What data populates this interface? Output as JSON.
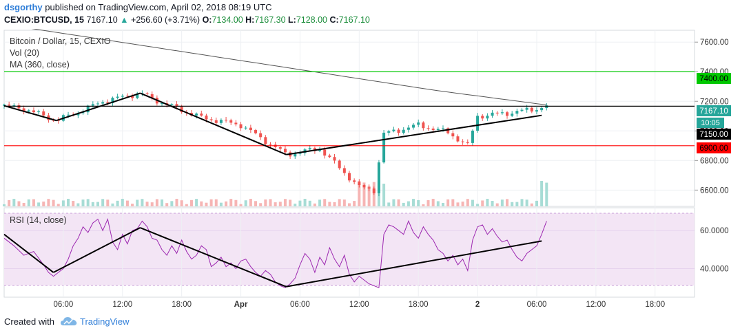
{
  "header": {
    "user": "dsgorthy",
    "published": " published on TradingView.com, April 02, 2018 08:19 UTC",
    "symbol": "CEXIO:BTCUSD, 15",
    "last": "7167.10",
    "arrow": "▲",
    "change": "+256.60 (+3.71%)",
    "o_label": "O:",
    "o_value": "7134.00",
    "h_label": "H:",
    "h_value": "7167.30",
    "l_label": "L:",
    "l_value": "7128.00",
    "c_label": "C:",
    "c_value": "7167.10"
  },
  "legend": {
    "title": "Bitcoin / Dollar, 15, CEXIO",
    "volume": "Vol (20)",
    "ma": "MA (360, close)",
    "rsi": "RSI (14, close)"
  },
  "price_tags": {
    "last": "7167.10",
    "countdown": "10:05",
    "support_line": "7150.00",
    "resistance": "7400.00",
    "support": "6900.00"
  },
  "footer": {
    "created": "Created with",
    "brand": "TradingView"
  },
  "colors": {
    "up": "#26a69a",
    "down": "#ef5350",
    "ma": "#555555",
    "resistance": "#00c800",
    "support": "#ff0000",
    "rsi_line": "#9c27b0",
    "rsi_band": "#f3e5f5",
    "trend": "#000000"
  },
  "chart_data": {
    "type": "candlestick",
    "title": "Bitcoin / Dollar, 15, CEXIO",
    "price_axis": {
      "ticks": [
        6600,
        6800,
        7000,
        7200,
        7400,
        7600
      ],
      "range": [
        6490,
        7680
      ]
    },
    "time_axis": {
      "ticks": [
        "06:00",
        "12:00",
        "18:00",
        "Apr",
        "06:00",
        "12:00",
        "18:00",
        "2",
        "06:00",
        "12:00",
        "18:00"
      ],
      "tick_hours": [
        6,
        12,
        18,
        24,
        30,
        36,
        42,
        48,
        54,
        60,
        66
      ],
      "range_hours": [
        0,
        70
      ]
    },
    "horizontal_levels": [
      {
        "price": 7400.0,
        "role": "resistance"
      },
      {
        "price": 6900.0,
        "role": "support"
      },
      {
        "price": 7167.1,
        "role": "last price"
      }
    ],
    "trendlines_price": [
      {
        "points": [
          [
            0,
            7170
          ],
          [
            5.3,
            7070
          ]
        ]
      },
      {
        "points": [
          [
            5.3,
            7070
          ],
          [
            13.8,
            7255
          ]
        ]
      },
      {
        "points": [
          [
            13.8,
            7255
          ],
          [
            28.6,
            6840
          ]
        ]
      },
      {
        "points": [
          [
            28.6,
            6840
          ],
          [
            54.5,
            7105
          ]
        ]
      }
    ],
    "rsi": {
      "range": [
        25,
        72
      ],
      "ticks": [
        40,
        60
      ],
      "band": [
        30,
        70
      ],
      "points": [
        [
          0,
          56
        ],
        [
          1,
          52
        ],
        [
          2,
          47
        ],
        [
          3,
          49
        ],
        [
          4,
          42
        ],
        [
          4.5,
          38
        ],
        [
          5,
          36
        ],
        [
          5.5,
          38
        ],
        [
          6,
          40
        ],
        [
          6.5,
          45
        ],
        [
          7,
          52
        ],
        [
          7.5,
          56
        ],
        [
          8,
          62
        ],
        [
          8.5,
          59
        ],
        [
          9,
          64
        ],
        [
          9.5,
          66
        ],
        [
          10,
          60
        ],
        [
          10.5,
          66
        ],
        [
          11,
          54
        ],
        [
          11.5,
          50
        ],
        [
          12,
          58
        ],
        [
          12.5,
          53
        ],
        [
          13,
          60
        ],
        [
          13.5,
          61
        ],
        [
          14,
          65
        ],
        [
          14.5,
          62
        ],
        [
          15,
          56
        ],
        [
          15.5,
          55
        ],
        [
          16,
          50
        ],
        [
          16.5,
          47
        ],
        [
          17,
          52
        ],
        [
          17.5,
          48
        ],
        [
          18,
          55
        ],
        [
          18.5,
          49
        ],
        [
          19,
          45
        ],
        [
          19.5,
          47
        ],
        [
          20,
          52
        ],
        [
          20.5,
          50
        ],
        [
          21,
          41
        ],
        [
          21.5,
          43
        ],
        [
          22,
          46
        ],
        [
          22.5,
          41
        ],
        [
          23,
          43
        ],
        [
          23.5,
          40
        ],
        [
          24,
          44
        ],
        [
          24.5,
          45
        ],
        [
          25,
          41
        ],
        [
          25.5,
          38
        ],
        [
          26,
          36
        ],
        [
          26.5,
          39
        ],
        [
          27,
          37
        ],
        [
          27.5,
          33
        ],
        [
          28,
          31
        ],
        [
          28.5,
          30
        ],
        [
          29,
          32
        ],
        [
          29.5,
          35
        ],
        [
          30,
          42
        ],
        [
          30.5,
          48
        ],
        [
          31,
          45
        ],
        [
          31.5,
          38
        ],
        [
          32,
          46
        ],
        [
          32.5,
          42
        ],
        [
          33,
          51
        ],
        [
          33.5,
          45
        ],
        [
          34,
          41
        ],
        [
          34.5,
          47
        ],
        [
          35,
          37
        ],
        [
          35.5,
          33
        ],
        [
          36,
          36
        ],
        [
          36.5,
          34
        ],
        [
          37,
          32
        ],
        [
          37.5,
          31
        ],
        [
          38,
          30
        ],
        [
          38.5,
          58
        ],
        [
          39,
          63
        ],
        [
          39.5,
          62
        ],
        [
          40,
          60
        ],
        [
          40.5,
          58
        ],
        [
          41,
          65
        ],
        [
          41.5,
          59
        ],
        [
          42,
          56
        ],
        [
          42.5,
          62
        ],
        [
          43,
          58
        ],
        [
          43.5,
          55
        ],
        [
          44,
          50
        ],
        [
          44.5,
          48
        ],
        [
          45,
          44
        ],
        [
          45.5,
          47
        ],
        [
          46,
          42
        ],
        [
          46.5,
          45
        ],
        [
          47,
          39
        ],
        [
          47.5,
          55
        ],
        [
          48,
          62
        ],
        [
          48.5,
          63
        ],
        [
          49,
          58
        ],
        [
          49.5,
          61
        ],
        [
          50,
          57
        ],
        [
          50.5,
          54
        ],
        [
          51,
          55
        ],
        [
          51.5,
          50
        ],
        [
          52,
          46
        ],
        [
          52.5,
          44
        ],
        [
          53,
          48
        ],
        [
          53.5,
          50
        ],
        [
          54,
          52
        ],
        [
          54.5,
          58
        ],
        [
          55,
          65
        ]
      ],
      "trendlines": [
        {
          "points": [
            [
              0,
              58
            ],
            [
              5,
              38
            ]
          ]
        },
        {
          "points": [
            [
              5,
              38
            ],
            [
              13.8,
              61.5
            ]
          ]
        },
        {
          "points": [
            [
              13.8,
              61.5
            ],
            [
              28.6,
              30.5
            ]
          ]
        },
        {
          "points": [
            [
              28.6,
              30.5
            ],
            [
              54.5,
              54.5
            ]
          ]
        }
      ]
    }
  }
}
